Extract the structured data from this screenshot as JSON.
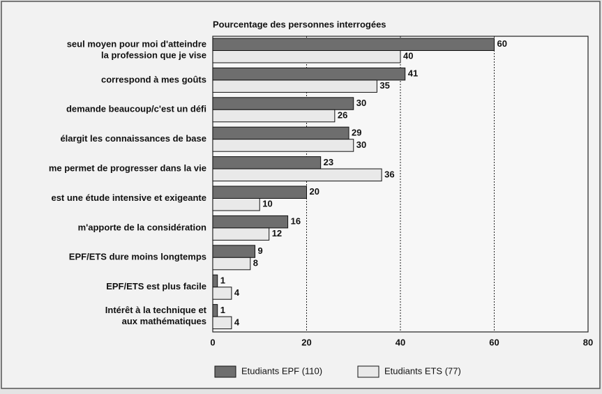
{
  "chart_data": {
    "type": "barh",
    "title": "Pourcentage des personnes interrogées",
    "categories": [
      "seul moyen pour moi d'atteindre\nla profession que je vise",
      "correspond à mes goûts",
      "demande beaucoup/c'est un défi",
      "élargit les connaissances de base",
      "me permet de progresser dans la vie",
      "est une étude intensive et exigeante",
      "m'apporte de la considération",
      "EPF/ETS dure moins longtemps",
      "EPF/ETS est plus facile",
      "Intérêt à la technique et\naux mathématiques"
    ],
    "series": [
      {
        "name": "Etudiants EPF (110)",
        "color": "#6e6e6e",
        "values": [
          60,
          41,
          30,
          29,
          23,
          20,
          16,
          9,
          1,
          1
        ]
      },
      {
        "name": "Etudiants ETS (77)",
        "color": "#e9e9e9",
        "values": [
          40,
          35,
          26,
          30,
          36,
          10,
          12,
          8,
          4,
          4
        ]
      }
    ],
    "xlim": [
      0,
      80
    ],
    "xticks": [
      0,
      20,
      40,
      60,
      80
    ],
    "grid": true,
    "legend": "bottom"
  }
}
